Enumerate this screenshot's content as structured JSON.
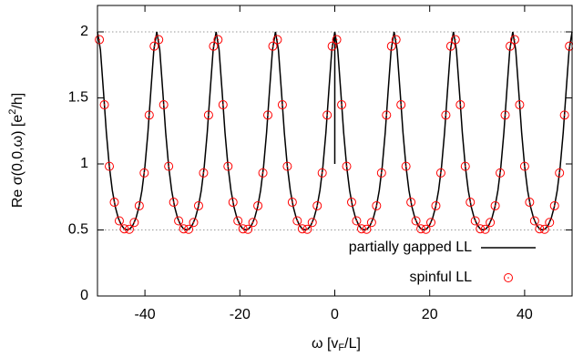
{
  "chart_data": {
    "type": "line",
    "x_label": [
      "ω [v",
      "F",
      "/L]"
    ],
    "y_label": [
      "Re σ(0,0,ω) [e",
      "2",
      "/h]"
    ],
    "xlim": [
      -50,
      50
    ],
    "ylim": [
      0,
      2.2
    ],
    "xticks": [
      -40,
      -20,
      0,
      20,
      40
    ],
    "yticks": [
      0,
      0.5,
      1,
      1.5,
      2
    ],
    "hlines": [
      0.5,
      2
    ],
    "legend": "lower right",
    "series": [
      {
        "name": "partially gapped LL",
        "type": "line",
        "color": "#000000",
        "x": [
          -50,
          -49.375,
          -48.75,
          -48.125,
          -47.5,
          -46.875,
          -46.25,
          -45.625,
          -45,
          -44.375,
          -43.75,
          -43.125,
          -42.5,
          -41.875,
          -41.25,
          -40.625,
          -40,
          -39.375,
          -38.75,
          -38.125,
          -37.5,
          -36.875,
          -36.25,
          -35.625,
          -35,
          -34.375,
          -33.75,
          -33.125,
          -32.5,
          -31.875,
          -31.25,
          -30.625,
          -30,
          -29.375,
          -28.75,
          -28.125,
          -27.5,
          -26.875,
          -26.25,
          -25.625,
          -25,
          -24.375,
          -23.75,
          -23.125,
          -22.5,
          -21.875,
          -21.25,
          -20.625,
          -20,
          -19.375,
          -18.75,
          -18.125,
          -17.5,
          -16.875,
          -16.25,
          -15.625,
          -15,
          -14.375,
          -13.75,
          -13.125,
          -12.5,
          -11.875,
          -11.25,
          -10.625,
          -10,
          -9.375,
          -8.75,
          -8.125,
          -7.5,
          -6.875,
          -6.25,
          -5.625,
          -5,
          -4.375,
          -3.75,
          -3.125,
          -2.5,
          -1.875,
          -1.25,
          -0.625,
          0,
          0,
          0,
          0.625,
          1.25,
          1.875,
          2.5,
          3.125,
          3.75,
          4.375,
          5,
          5.625,
          6.25,
          6.875,
          7.5,
          8.125,
          8.75,
          9.375,
          10,
          10.625,
          11.25,
          11.875,
          12.5,
          13.125,
          13.75,
          14.375,
          15,
          15.625,
          16.25,
          16.875,
          17.5,
          18.125,
          18.75,
          19.375,
          20,
          20.625,
          21.25,
          21.875,
          22.5,
          23.125,
          23.75,
          24.375,
          25,
          25.625,
          26.25,
          26.875,
          27.5,
          28.125,
          28.75,
          29.375,
          30,
          30.625,
          31.25,
          31.875,
          32.5,
          33.125,
          33.75,
          34.375,
          35,
          35.625,
          36.25,
          36.875,
          37.5,
          38.125,
          38.75,
          39.375,
          40,
          40.625,
          41.25,
          41.875,
          42.5,
          43.125,
          43.75,
          44.375,
          45,
          45.625,
          46.25,
          46.875,
          47.5,
          48.125,
          48.75,
          49.375,
          50
        ],
        "values": [
          2,
          1.863,
          1.555,
          1.236,
          0.982,
          0.8,
          0.675,
          0.591,
          0.539,
          0.509,
          0.5,
          0.509,
          0.539,
          0.591,
          0.675,
          0.8,
          0.982,
          1.236,
          1.555,
          1.863,
          2,
          1.863,
          1.555,
          1.236,
          0.982,
          0.8,
          0.675,
          0.591,
          0.539,
          0.509,
          0.5,
          0.509,
          0.539,
          0.591,
          0.675,
          0.8,
          0.982,
          1.236,
          1.555,
          1.863,
          2,
          1.863,
          1.555,
          1.236,
          0.982,
          0.8,
          0.675,
          0.591,
          0.539,
          0.509,
          0.5,
          0.509,
          0.539,
          0.591,
          0.675,
          0.8,
          0.982,
          1.236,
          1.555,
          1.863,
          2,
          1.863,
          1.555,
          1.236,
          0.982,
          0.8,
          0.675,
          0.591,
          0.539,
          0.509,
          0.5,
          0.509,
          0.539,
          0.591,
          0.675,
          0.8,
          0.982,
          1.236,
          1.555,
          1.863,
          2,
          1,
          2,
          1.863,
          1.555,
          1.236,
          0.982,
          0.8,
          0.675,
          0.591,
          0.539,
          0.509,
          0.5,
          0.509,
          0.539,
          0.591,
          0.675,
          0.8,
          0.982,
          1.236,
          1.555,
          1.863,
          2,
          1.863,
          1.555,
          1.236,
          0.982,
          0.8,
          0.675,
          0.591,
          0.539,
          0.509,
          0.5,
          0.509,
          0.539,
          0.591,
          0.675,
          0.8,
          0.982,
          1.236,
          1.555,
          1.863,
          2,
          1.863,
          1.555,
          1.236,
          0.982,
          0.8,
          0.675,
          0.591,
          0.539,
          0.509,
          0.5,
          0.509,
          0.539,
          0.591,
          0.675,
          0.8,
          0.982,
          1.236,
          1.555,
          1.863,
          2,
          1.863,
          1.555,
          1.236,
          0.982,
          0.8,
          0.675,
          0.591,
          0.539,
          0.509,
          0.5,
          0.509,
          0.539,
          0.591,
          0.675,
          0.8,
          0.982,
          1.236,
          1.555,
          1.863,
          2
        ]
      },
      {
        "name": "spinful LL",
        "type": "scatter",
        "color": "#ff0000",
        "x": [
          -49.6,
          -48.55,
          -47.5,
          -46.45,
          -45.4,
          -44.35,
          -43.3,
          -42.25,
          -41.2,
          -40.15,
          -39.1,
          -38.05,
          -37.1,
          -36.05,
          -35,
          -33.95,
          -32.9,
          -31.85,
          -30.8,
          -29.75,
          -28.7,
          -27.65,
          -26.6,
          -25.55,
          -24.6,
          -23.55,
          -22.5,
          -21.45,
          -20.4,
          -19.35,
          -18.3,
          -17.25,
          -16.2,
          -15.15,
          -14.1,
          -13.05,
          -12.1,
          -11.05,
          -10,
          -8.95,
          -7.9,
          -6.85,
          -5.8,
          -4.75,
          -3.7,
          -2.65,
          -1.6,
          -0.55,
          0.4,
          1.45,
          2.5,
          3.55,
          4.6,
          5.65,
          6.7,
          7.75,
          8.8,
          9.85,
          10.9,
          11.95,
          12.9,
          13.95,
          15,
          16.05,
          17.1,
          18.15,
          19.2,
          20.25,
          21.3,
          22.35,
          23.4,
          24.45,
          25.4,
          26.45,
          27.5,
          28.55,
          29.6,
          30.65,
          31.7,
          32.75,
          33.8,
          34.85,
          35.9,
          36.95,
          37.9,
          38.95,
          40,
          41.05,
          42.1,
          43.15,
          44.2,
          45.25,
          46.3,
          47.35,
          48.4,
          49.45
        ],
        "values": [
          1.941,
          1.448,
          0.982,
          0.71,
          0.569,
          0.509,
          0.505,
          0.557,
          0.683,
          0.932,
          1.37,
          1.892,
          1.941,
          1.448,
          0.982,
          0.71,
          0.569,
          0.509,
          0.505,
          0.557,
          0.683,
          0.932,
          1.37,
          1.892,
          1.941,
          1.448,
          0.982,
          0.71,
          0.569,
          0.509,
          0.505,
          0.557,
          0.683,
          0.932,
          1.37,
          1.892,
          1.941,
          1.448,
          0.982,
          0.71,
          0.569,
          0.509,
          0.505,
          0.557,
          0.683,
          0.932,
          1.37,
          1.892,
          1.941,
          1.448,
          0.982,
          0.71,
          0.569,
          0.509,
          0.505,
          0.557,
          0.683,
          0.932,
          1.37,
          1.892,
          1.941,
          1.448,
          0.982,
          0.71,
          0.569,
          0.509,
          0.505,
          0.557,
          0.683,
          0.932,
          1.37,
          1.892,
          1.941,
          1.448,
          0.982,
          0.71,
          0.569,
          0.509,
          0.505,
          0.557,
          0.683,
          0.932,
          1.37,
          1.892,
          1.941,
          1.448,
          0.982,
          0.71,
          0.569,
          0.509,
          0.505,
          0.557,
          0.683,
          0.932,
          1.37,
          1.892
        ]
      }
    ]
  }
}
